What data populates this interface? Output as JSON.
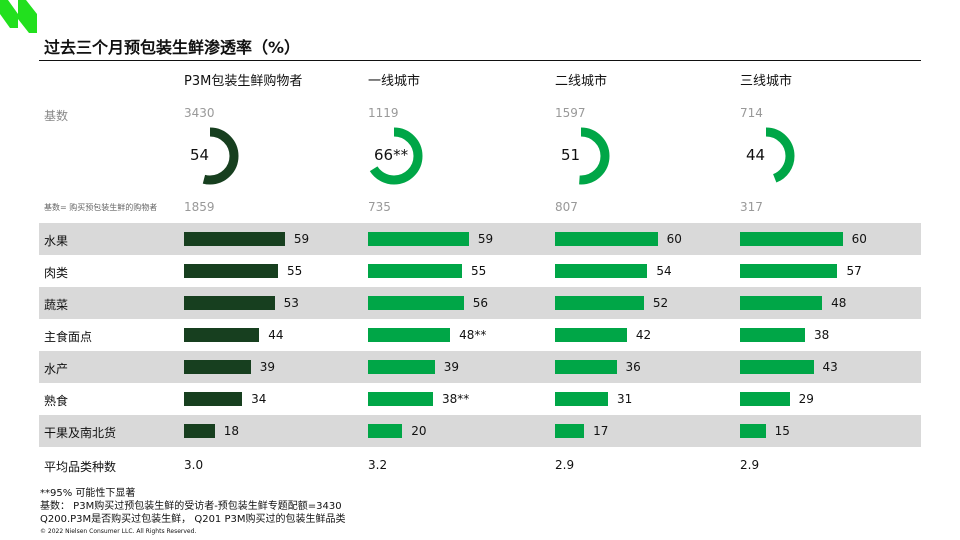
{
  "title": "过去三个月预包装生鲜渗透率（%）",
  "colors": {
    "dark": "#173f1f",
    "green": "#00a647",
    "logo": "#22e01e",
    "shade": "#d9d9d9"
  },
  "labels": {
    "base": "基数",
    "base2": "基数= 购买预包装生鲜的购物者",
    "avg": "平均品类种数"
  },
  "chart_data": {
    "type": "bar",
    "title": "过去三个月预包装生鲜渗透率（%）",
    "columns": [
      {
        "name": "P3M包装生鲜购物者",
        "base": "3430",
        "penetration": 54,
        "pen_label": "54",
        "base2": "1859",
        "avg": "3.0"
      },
      {
        "name": "一线城市",
        "base": "1119",
        "penetration": 66,
        "pen_label": "66**",
        "base2": "735",
        "avg": "3.2"
      },
      {
        "name": "二线城市",
        "base": "1597",
        "penetration": 51,
        "pen_label": "51",
        "base2": "807",
        "avg": "2.9"
      },
      {
        "name": "三线城市",
        "base": "714",
        "penetration": 44,
        "pen_label": "44",
        "base2": "317",
        "avg": "2.9"
      }
    ],
    "categories": [
      "水果",
      "肉类",
      "蔬菜",
      "主食面点",
      "水产",
      "熟食",
      "干果及南北货"
    ],
    "series": [
      {
        "name": "P3M包装生鲜购物者",
        "values": [
          59,
          55,
          53,
          44,
          39,
          34,
          18
        ],
        "labels": [
          "59",
          "55",
          "53",
          "44",
          "39",
          "34",
          "18"
        ]
      },
      {
        "name": "一线城市",
        "values": [
          59,
          55,
          56,
          48,
          39,
          38,
          20
        ],
        "labels": [
          "59",
          "55",
          "56",
          "48**",
          "39",
          "38**",
          "20"
        ]
      },
      {
        "name": "二线城市",
        "values": [
          60,
          54,
          52,
          42,
          36,
          31,
          17
        ],
        "labels": [
          "60",
          "54",
          "52",
          "42",
          "36",
          "31",
          "17"
        ]
      },
      {
        "name": "三线城市",
        "values": [
          60,
          57,
          48,
          38,
          43,
          29,
          15
        ],
        "labels": [
          "60",
          "57",
          "48",
          "38",
          "43",
          "29",
          "15"
        ]
      }
    ]
  },
  "footnotes": [
    "**95% 可能性下显著",
    "基数：  P3M购买过预包装生鲜的受访者-预包装生鲜专题配额=3430",
    "Q200.P3M是否购买过包装生鲜， Q201 P3M购买过的包装生鲜品类"
  ],
  "copyright": "© 2022 Nielsen Consumer LLC. All Rights Reserved."
}
